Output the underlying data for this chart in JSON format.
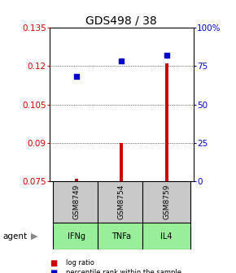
{
  "title": "GDS498 / 38",
  "samples": [
    "GSM8749",
    "GSM8754",
    "GSM8759"
  ],
  "agents": [
    "IFNg",
    "TNFa",
    "IL4"
  ],
  "x_positions": [
    1,
    2,
    3
  ],
  "log_ratio_values": [
    0.076,
    0.09,
    0.121
  ],
  "log_ratio_base": 0.075,
  "percentile_raw": [
    68,
    78,
    82
  ],
  "ylim_left": [
    0.075,
    0.135
  ],
  "ylim_right": [
    0,
    100
  ],
  "yticks_left": [
    0.075,
    0.09,
    0.105,
    0.12,
    0.135
  ],
  "yticks_right": [
    0,
    25,
    50,
    75,
    100
  ],
  "ytick_labels_left": [
    "0.075",
    "0.09",
    "0.105",
    "0.12",
    "0.135"
  ],
  "ytick_labels_right": [
    "0",
    "25",
    "50",
    "75",
    "100%"
  ],
  "left_color": "#cc0000",
  "right_color": "#0000cc",
  "bar_color": "#cc0000",
  "dot_color": "#0000cc",
  "sample_box_color": "#c8c8c8",
  "agent_box_color": "#99ee99",
  "legend_log": "log ratio",
  "legend_pct": "percentile rank within the sample",
  "agent_label": "agent",
  "title_fontsize": 10,
  "tick_fontsize": 7.5,
  "label_fontsize": 7
}
